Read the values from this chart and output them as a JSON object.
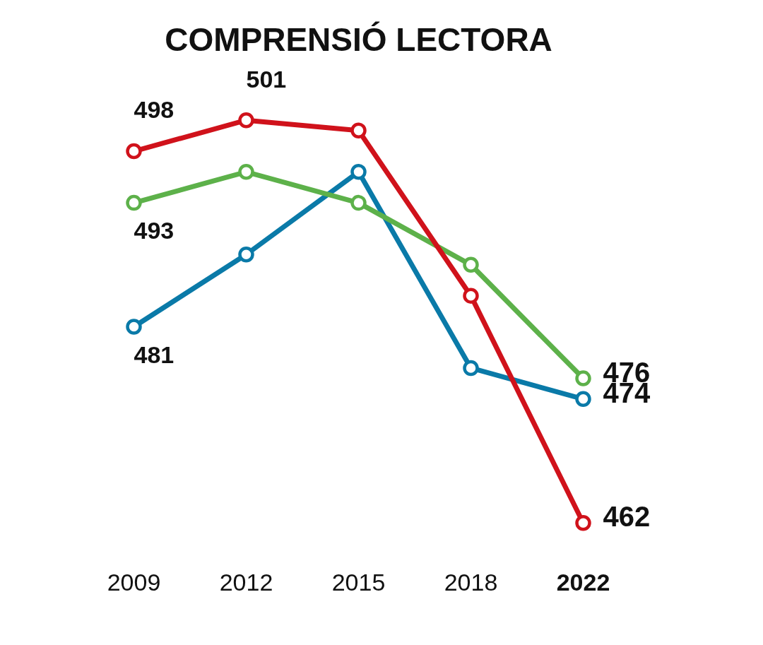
{
  "chart_data": {
    "type": "line",
    "title": "COMPRENSIÓ LECTORA",
    "categories": [
      "2009",
      "2012",
      "2015",
      "2018",
      "2022"
    ],
    "series": [
      {
        "color": "#d0121b",
        "values": [
          498,
          501,
          500,
          484,
          462
        ],
        "value_labels": [
          "498",
          "501",
          null,
          null,
          "462"
        ]
      },
      {
        "color": "#5db14a",
        "values": [
          493,
          496,
          493,
          487,
          476
        ],
        "value_labels": [
          "493",
          null,
          null,
          null,
          "476"
        ]
      },
      {
        "color": "#0a7aa8",
        "values": [
          481,
          488,
          496,
          477,
          474
        ],
        "value_labels": [
          "481",
          null,
          null,
          null,
          "474"
        ]
      }
    ],
    "tick_labels": "x",
    "marker": "circle",
    "line_style": "solid",
    "grid": false,
    "legend": false
  }
}
